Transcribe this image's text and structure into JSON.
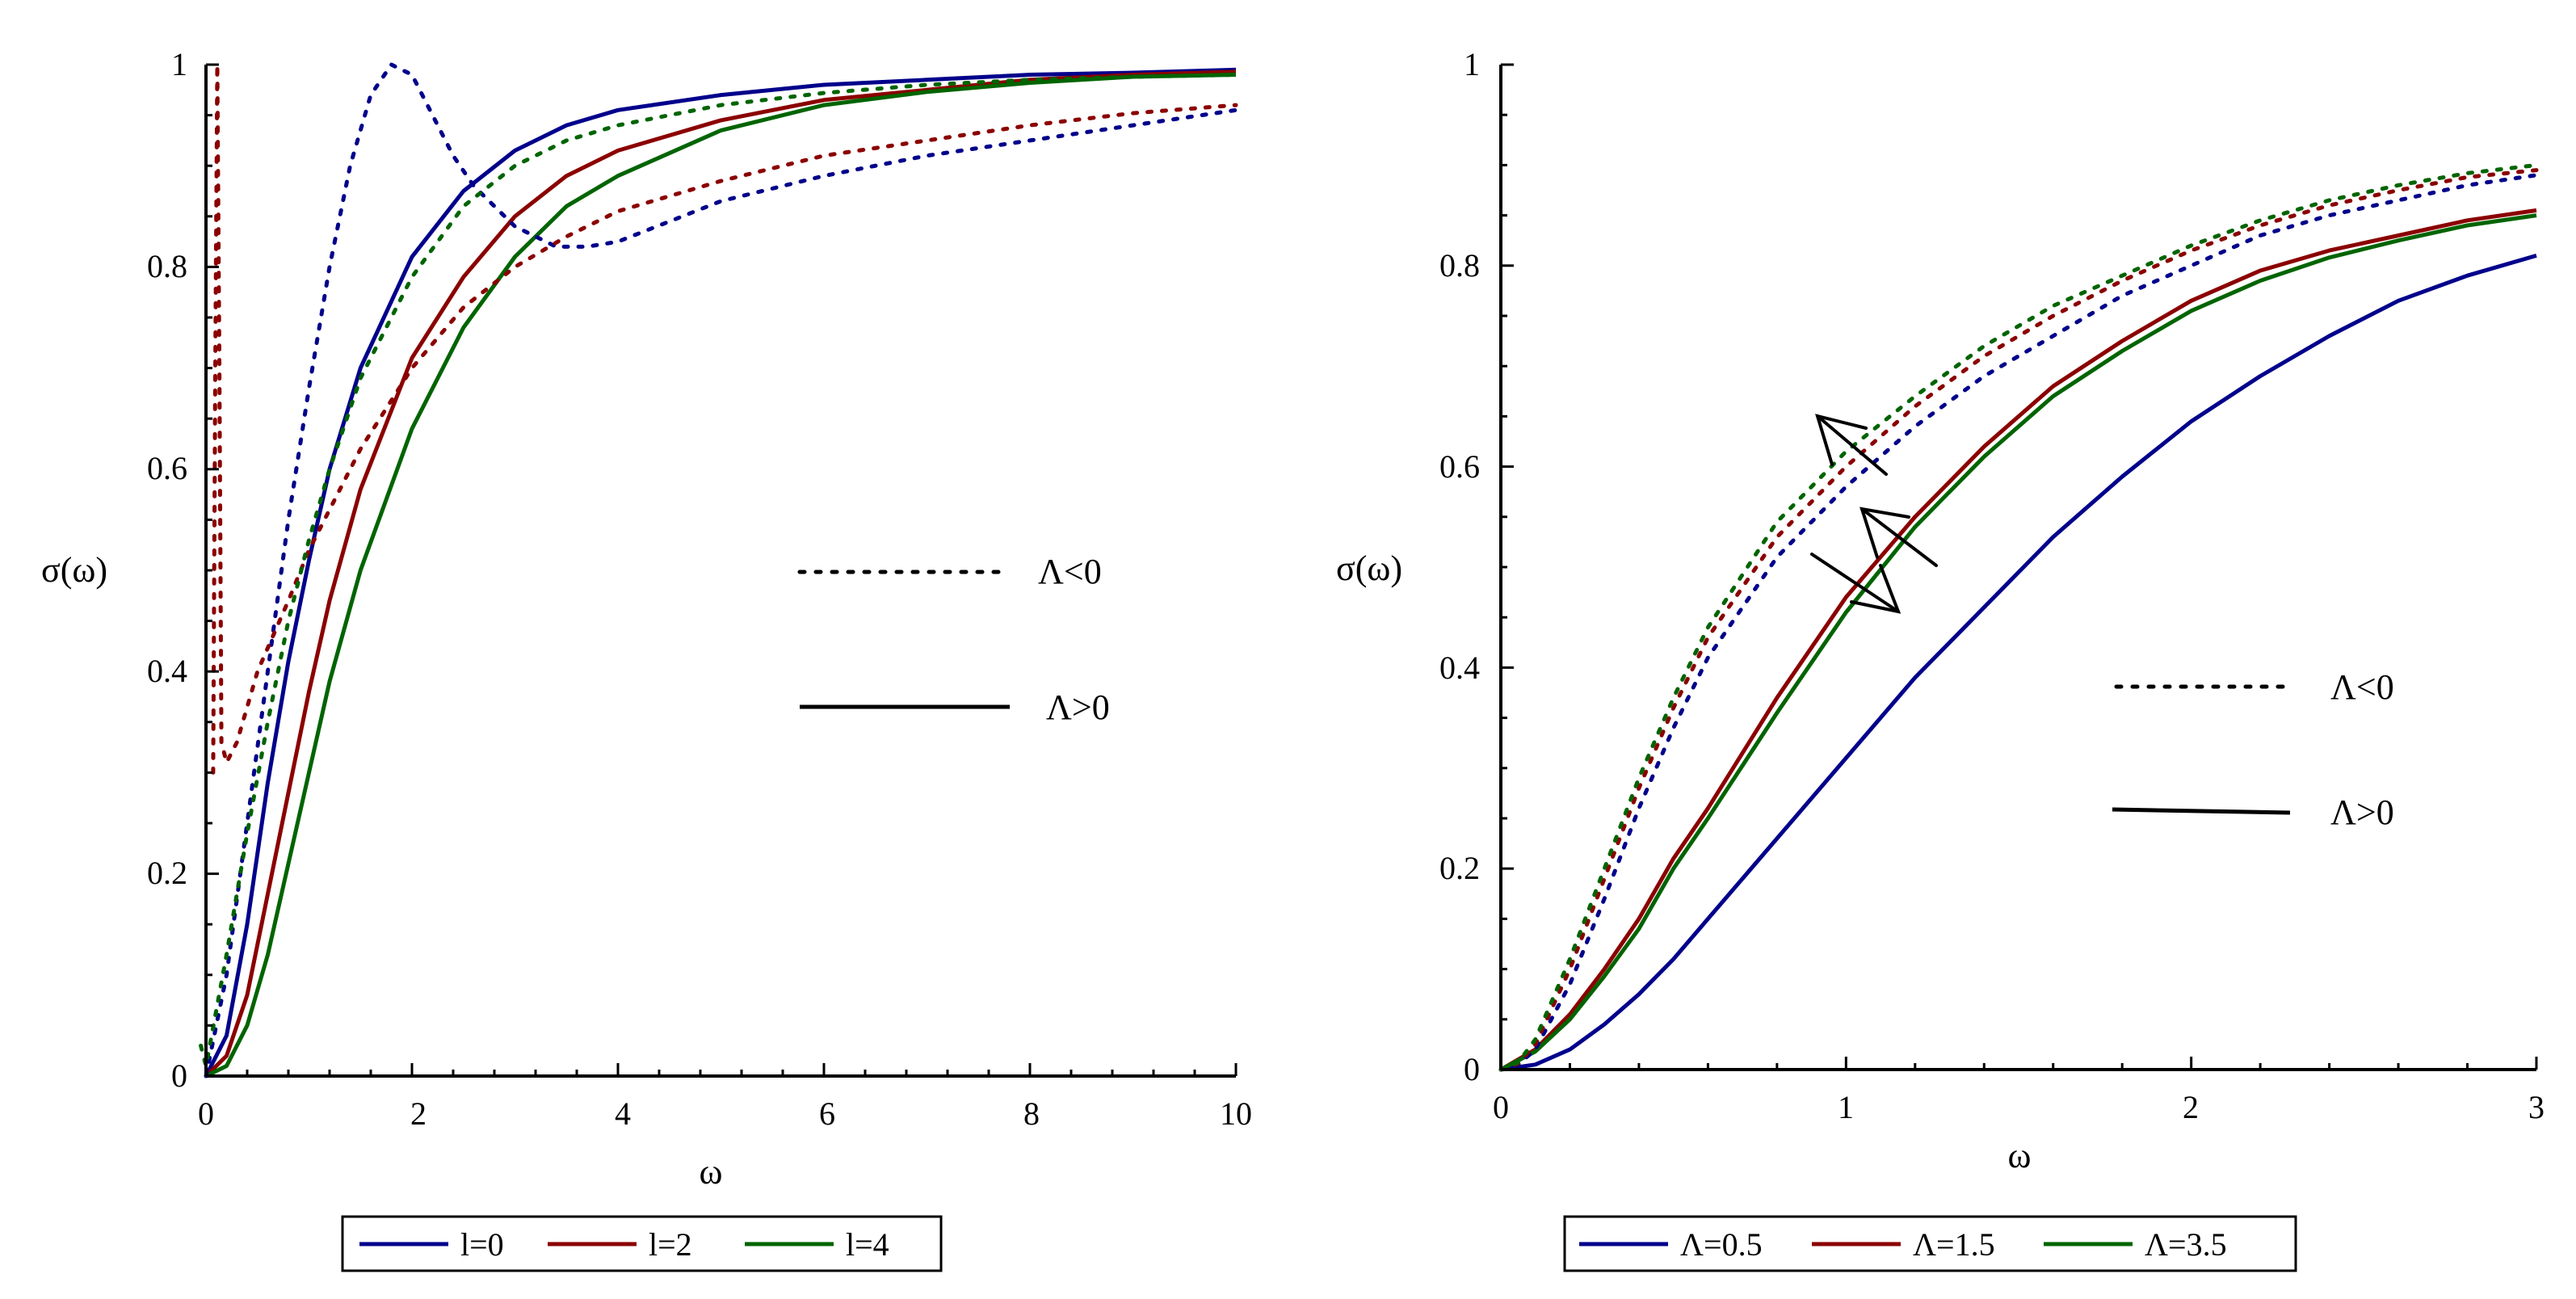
{
  "chart_data": [
    {
      "type": "line",
      "xlabel": "ω",
      "ylabel": "σ(ω)",
      "xlim": [
        -0.05,
        10
      ],
      "ylim": [
        0,
        1
      ],
      "xticks": [
        0,
        2,
        4,
        6,
        8,
        10
      ],
      "yticks": [
        0,
        0.2,
        0.4,
        0.6,
        0.8,
        1
      ],
      "x_tick_labels": [
        "0",
        "2",
        "4",
        "6",
        "8",
        "10"
      ],
      "y_tick_labels": [
        "0",
        "0.2",
        "0.4",
        "0.6",
        "0.8",
        "1"
      ],
      "style_key": {
        "dotted_label": "Λ<0",
        "solid_label": "Λ>0"
      },
      "legend": [
        "l=0",
        "l=2",
        "l=4"
      ],
      "series": [
        {
          "name": "l=0",
          "style": "solid",
          "color": "#00008b",
          "x": [
            0,
            0.2,
            0.4,
            0.6,
            0.8,
            1.0,
            1.2,
            1.5,
            2.0,
            2.5,
            3.0,
            3.5,
            4.0,
            5.0,
            6.0,
            7.0,
            8.0,
            9.0,
            10.0
          ],
          "y": [
            0,
            0.04,
            0.15,
            0.29,
            0.41,
            0.51,
            0.6,
            0.7,
            0.81,
            0.875,
            0.915,
            0.94,
            0.955,
            0.97,
            0.98,
            0.985,
            0.99,
            0.992,
            0.995
          ]
        },
        {
          "name": "l=2",
          "style": "solid",
          "color": "#8b0000",
          "x": [
            0,
            0.2,
            0.4,
            0.6,
            0.8,
            1.0,
            1.2,
            1.5,
            2.0,
            2.5,
            3.0,
            3.5,
            4.0,
            5.0,
            6.0,
            7.0,
            8.0,
            9.0,
            10.0
          ],
          "y": [
            0,
            0.02,
            0.08,
            0.18,
            0.28,
            0.38,
            0.47,
            0.58,
            0.71,
            0.79,
            0.85,
            0.89,
            0.915,
            0.945,
            0.965,
            0.975,
            0.985,
            0.99,
            0.993
          ]
        },
        {
          "name": "l=4",
          "style": "solid",
          "color": "#006400",
          "x": [
            0,
            0.2,
            0.4,
            0.6,
            0.8,
            1.0,
            1.2,
            1.5,
            2.0,
            2.5,
            3.0,
            3.5,
            4.0,
            5.0,
            6.0,
            7.0,
            8.0,
            9.0,
            10.0
          ],
          "y": [
            0,
            0.01,
            0.05,
            0.12,
            0.21,
            0.3,
            0.39,
            0.5,
            0.64,
            0.74,
            0.81,
            0.86,
            0.89,
            0.935,
            0.96,
            0.973,
            0.982,
            0.988,
            0.99
          ]
        },
        {
          "name": "l=0 (Λ<0)",
          "style": "dotted",
          "color": "#00008b",
          "x": [
            0,
            0.2,
            0.4,
            0.6,
            0.8,
            1.0,
            1.2,
            1.4,
            1.6,
            1.8,
            2.0,
            2.2,
            2.4,
            2.6,
            2.8,
            3.0,
            3.2,
            3.4,
            3.7,
            4.0,
            4.5,
            5.0,
            6.0,
            7.0,
            8.0,
            9.0,
            10.0
          ],
          "y": [
            0,
            0.1,
            0.25,
            0.4,
            0.55,
            0.68,
            0.8,
            0.9,
            0.97,
            1.0,
            0.99,
            0.95,
            0.91,
            0.88,
            0.86,
            0.84,
            0.83,
            0.82,
            0.82,
            0.825,
            0.845,
            0.865,
            0.89,
            0.91,
            0.925,
            0.94,
            0.955
          ]
        },
        {
          "name": "l=2 (Λ<0)",
          "style": "dotted",
          "color": "#8b0000",
          "x": [
            0.07,
            0.09,
            0.11,
            0.13,
            0.15,
            0.2,
            0.3,
            0.5,
            0.8,
            1.0,
            1.5,
            2.0,
            2.5,
            3.0,
            3.5,
            4.0,
            5.0,
            6.0,
            7.0,
            8.0,
            9.0,
            10.0
          ],
          "y": [
            0.3,
            0.7,
            1.0,
            0.7,
            0.33,
            0.31,
            0.33,
            0.4,
            0.47,
            0.52,
            0.62,
            0.7,
            0.76,
            0.8,
            0.83,
            0.855,
            0.885,
            0.91,
            0.925,
            0.94,
            0.952,
            0.96
          ]
        },
        {
          "name": "l=4 (Λ<0)",
          "style": "dotted",
          "color": "#006400",
          "x": [
            -0.05,
            0,
            0.2,
            0.4,
            0.6,
            0.8,
            1.0,
            1.2,
            1.5,
            2.0,
            2.5,
            3.0,
            3.5,
            4.0,
            5.0,
            6.0,
            7.0,
            8.0,
            9.0,
            10.0
          ],
          "y": [
            0.03,
            0.01,
            0.12,
            0.24,
            0.35,
            0.45,
            0.53,
            0.6,
            0.69,
            0.79,
            0.86,
            0.9,
            0.925,
            0.94,
            0.96,
            0.972,
            0.98,
            0.985,
            0.988,
            0.99
          ]
        }
      ]
    },
    {
      "type": "line",
      "xlabel": "ω",
      "ylabel": "σ(ω)",
      "xlim": [
        0,
        3
      ],
      "ylim": [
        0,
        1
      ],
      "xticks": [
        0,
        1,
        2,
        3
      ],
      "yticks": [
        0,
        0.2,
        0.4,
        0.6,
        0.8,
        1
      ],
      "x_tick_labels": [
        "0",
        "1",
        "2",
        "3"
      ],
      "y_tick_labels": [
        "0",
        "0.2",
        "0.4",
        "0.6",
        "0.8",
        "1"
      ],
      "style_key": {
        "dotted_label": "Λ<0",
        "solid_label": "Λ>0"
      },
      "legend": [
        "Λ=0.5",
        "Λ=1.5",
        "Λ=3.5"
      ],
      "series": [
        {
          "name": "Λ=0.5",
          "style": "solid",
          "color": "#00008b",
          "x": [
            0,
            0.1,
            0.2,
            0.3,
            0.4,
            0.5,
            0.6,
            0.8,
            1.0,
            1.2,
            1.4,
            1.6,
            1.8,
            2.0,
            2.2,
            2.4,
            2.6,
            2.8,
            3.0
          ],
          "y": [
            0,
            0.005,
            0.02,
            0.045,
            0.075,
            0.11,
            0.15,
            0.23,
            0.31,
            0.39,
            0.46,
            0.53,
            0.59,
            0.645,
            0.69,
            0.73,
            0.765,
            0.79,
            0.81
          ]
        },
        {
          "name": "Λ=1.5",
          "style": "solid",
          "color": "#8b0000",
          "x": [
            0,
            0.1,
            0.2,
            0.3,
            0.4,
            0.5,
            0.6,
            0.8,
            1.0,
            1.2,
            1.4,
            1.6,
            1.8,
            2.0,
            2.2,
            2.4,
            2.6,
            2.8,
            3.0
          ],
          "y": [
            0,
            0.02,
            0.055,
            0.1,
            0.15,
            0.21,
            0.26,
            0.37,
            0.47,
            0.55,
            0.62,
            0.68,
            0.725,
            0.765,
            0.795,
            0.815,
            0.83,
            0.845,
            0.855
          ]
        },
        {
          "name": "Λ=3.5",
          "style": "solid",
          "color": "#006400",
          "x": [
            0,
            0.1,
            0.2,
            0.3,
            0.4,
            0.5,
            0.6,
            0.8,
            1.0,
            1.2,
            1.4,
            1.6,
            1.8,
            2.0,
            2.2,
            2.4,
            2.6,
            2.8,
            3.0
          ],
          "y": [
            0,
            0.018,
            0.05,
            0.093,
            0.14,
            0.2,
            0.25,
            0.355,
            0.455,
            0.54,
            0.61,
            0.67,
            0.715,
            0.755,
            0.785,
            0.808,
            0.825,
            0.84,
            0.85
          ]
        },
        {
          "name": "Λ=0.5 (Λ<0)",
          "style": "dotted",
          "color": "#00008b",
          "x": [
            0,
            0.05,
            0.1,
            0.2,
            0.3,
            0.4,
            0.5,
            0.6,
            0.8,
            1.0,
            1.2,
            1.4,
            1.6,
            1.8,
            2.0,
            2.2,
            2.4,
            2.6,
            2.8,
            3.0
          ],
          "y": [
            0,
            0.005,
            0.02,
            0.085,
            0.17,
            0.26,
            0.34,
            0.41,
            0.51,
            0.58,
            0.64,
            0.69,
            0.73,
            0.77,
            0.8,
            0.83,
            0.85,
            0.865,
            0.88,
            0.89
          ]
        },
        {
          "name": "Λ=1.5 (Λ<0)",
          "style": "dotted",
          "color": "#8b0000",
          "x": [
            0,
            0.05,
            0.1,
            0.2,
            0.3,
            0.4,
            0.5,
            0.6,
            0.8,
            1.0,
            1.2,
            1.4,
            1.6,
            1.8,
            2.0,
            2.2,
            2.4,
            2.6,
            2.8,
            3.0
          ],
          "y": [
            0,
            0.006,
            0.025,
            0.1,
            0.19,
            0.28,
            0.36,
            0.43,
            0.53,
            0.6,
            0.66,
            0.71,
            0.75,
            0.785,
            0.815,
            0.84,
            0.86,
            0.875,
            0.888,
            0.895
          ]
        },
        {
          "name": "Λ=3.5 (Λ<0)",
          "style": "dotted",
          "color": "#006400",
          "x": [
            0,
            0.05,
            0.1,
            0.2,
            0.3,
            0.4,
            0.5,
            0.6,
            0.8,
            1.0,
            1.2,
            1.4,
            1.6,
            1.8,
            2.0,
            2.2,
            2.4,
            2.6,
            2.8,
            3.0
          ],
          "y": [
            0,
            0.007,
            0.03,
            0.11,
            0.2,
            0.29,
            0.37,
            0.44,
            0.545,
            0.615,
            0.67,
            0.72,
            0.76,
            0.79,
            0.82,
            0.845,
            0.865,
            0.88,
            0.892,
            0.9
          ]
        }
      ]
    }
  ]
}
